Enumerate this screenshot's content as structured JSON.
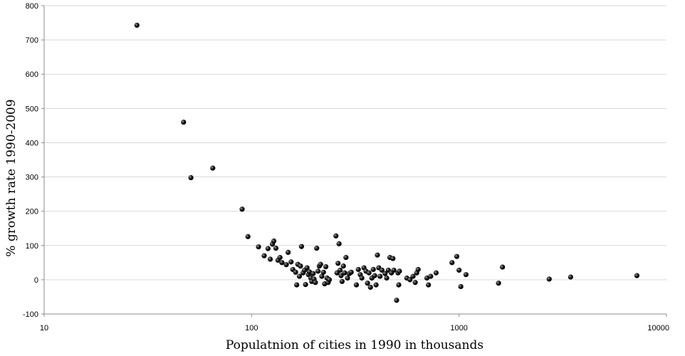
{
  "chart_data": {
    "type": "scatter",
    "xlabel": "Populatnion of cities in 1990 in thousands",
    "ylabel": "% growth rate 1990-2009",
    "x_scale": "log",
    "xlim": [
      10,
      10000
    ],
    "ylim": [
      -100,
      800
    ],
    "x_ticks": [
      "10",
      "100",
      "1000",
      "10000"
    ],
    "y_ticks": [
      "-100",
      "0",
      "100",
      "200",
      "300",
      "400",
      "500",
      "600",
      "700",
      "800"
    ],
    "grid": "horizontal",
    "legend": "none",
    "marker_color": "#111111",
    "points": [
      [
        28,
        743
      ],
      [
        47,
        460
      ],
      [
        51,
        298
      ],
      [
        65,
        326
      ],
      [
        90,
        206
      ],
      [
        96,
        126
      ],
      [
        108,
        96
      ],
      [
        115,
        70
      ],
      [
        120,
        91
      ],
      [
        123,
        60
      ],
      [
        126,
        104
      ],
      [
        128,
        113
      ],
      [
        131,
        92
      ],
      [
        134,
        57
      ],
      [
        137,
        65
      ],
      [
        140,
        50
      ],
      [
        147,
        44
      ],
      [
        150,
        80
      ],
      [
        155,
        52
      ],
      [
        158,
        30
      ],
      [
        163,
        22
      ],
      [
        165,
        -15
      ],
      [
        167,
        45
      ],
      [
        170,
        10
      ],
      [
        172,
        40
      ],
      [
        174,
        97
      ],
      [
        177,
        20
      ],
      [
        180,
        28
      ],
      [
        182,
        -14
      ],
      [
        185,
        35
      ],
      [
        188,
        15
      ],
      [
        190,
        23
      ],
      [
        193,
        5
      ],
      [
        195,
        -5
      ],
      [
        198,
        18
      ],
      [
        200,
        2
      ],
      [
        203,
        -8
      ],
      [
        206,
        92
      ],
      [
        209,
        25
      ],
      [
        212,
        40
      ],
      [
        215,
        45
      ],
      [
        218,
        10
      ],
      [
        222,
        22
      ],
      [
        225,
        -12
      ],
      [
        228,
        38
      ],
      [
        231,
        5
      ],
      [
        234,
        -8
      ],
      [
        237,
        0
      ],
      [
        255,
        128
      ],
      [
        258,
        20
      ],
      [
        261,
        48
      ],
      [
        264,
        105
      ],
      [
        267,
        28
      ],
      [
        270,
        12
      ],
      [
        273,
        -5
      ],
      [
        277,
        40
      ],
      [
        281,
        20
      ],
      [
        285,
        65
      ],
      [
        290,
        5
      ],
      [
        296,
        18
      ],
      [
        302,
        22
      ],
      [
        320,
        -15
      ],
      [
        327,
        30
      ],
      [
        334,
        15
      ],
      [
        340,
        5
      ],
      [
        348,
        35
      ],
      [
        356,
        25
      ],
      [
        362,
        -10
      ],
      [
        368,
        20
      ],
      [
        374,
        -22
      ],
      [
        380,
        5
      ],
      [
        386,
        30
      ],
      [
        392,
        12
      ],
      [
        398,
        -15
      ],
      [
        404,
        72
      ],
      [
        410,
        35
      ],
      [
        416,
        10
      ],
      [
        425,
        28
      ],
      [
        440,
        18
      ],
      [
        448,
        5
      ],
      [
        456,
        28
      ],
      [
        464,
        65
      ],
      [
        472,
        20
      ],
      [
        480,
        62
      ],
      [
        485,
        28
      ],
      [
        500,
        -60
      ],
      [
        508,
        20
      ],
      [
        512,
        -15
      ],
      [
        516,
        25
      ],
      [
        560,
        5
      ],
      [
        580,
        0
      ],
      [
        600,
        10
      ],
      [
        615,
        -8
      ],
      [
        625,
        20
      ],
      [
        635,
        30
      ],
      [
        700,
        5
      ],
      [
        712,
        -15
      ],
      [
        730,
        10
      ],
      [
        775,
        20
      ],
      [
        925,
        50
      ],
      [
        975,
        68
      ],
      [
        1000,
        28
      ],
      [
        1020,
        -20
      ],
      [
        1080,
        15
      ],
      [
        1550,
        -10
      ],
      [
        1620,
        37
      ],
      [
        2720,
        2
      ],
      [
        3450,
        8
      ],
      [
        7200,
        12
      ]
    ]
  }
}
